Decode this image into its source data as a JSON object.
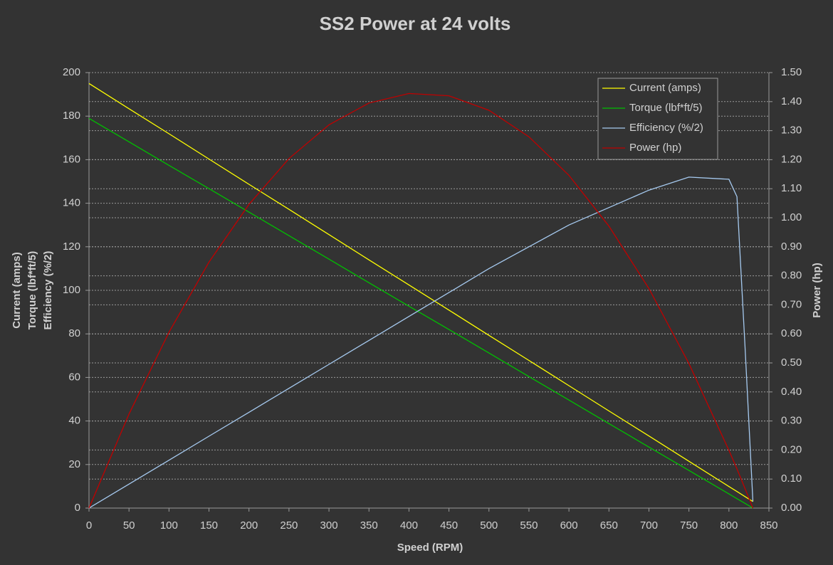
{
  "chart_data": {
    "type": "line",
    "title": "SS2 Power at 24 volts",
    "x_label": "Speed (RPM)",
    "y_label": [
      "Current (amps)",
      "Torque (lbf*ft/5)",
      "Efficiency (%/2)"
    ],
    "y2_label": "Power (hp)",
    "x": [
      0,
      50,
      100,
      150,
      200,
      250,
      300,
      350,
      400,
      450,
      500,
      550,
      600,
      650,
      700,
      750,
      800,
      810,
      820,
      830
    ],
    "series": [
      {
        "name": "Current (amps)",
        "color": "#ffff00",
        "values": [
          195,
          183.4,
          171.9,
          160.3,
          148.7,
          137.2,
          125.6,
          114.0,
          102.5,
          90.9,
          79.3,
          67.8,
          56.2,
          44.6,
          33.1,
          21.5,
          9.9,
          7.6,
          5.3,
          3
        ]
      },
      {
        "name": "Torque (lbf*ft/5)",
        "color": "#00c000",
        "values": [
          179,
          168.2,
          157.4,
          146.7,
          135.9,
          125.1,
          114.3,
          103.5,
          92.7,
          82.0,
          71.2,
          60.4,
          49.6,
          38.8,
          28.0,
          17.3,
          6.5,
          4.3,
          2.2,
          0
        ]
      },
      {
        "name": "Efficiency (%/2)",
        "color": "#a6caf0",
        "values": [
          0,
          11,
          22,
          33,
          44,
          55,
          66,
          77,
          88,
          99,
          110,
          120,
          130,
          138,
          146,
          152,
          151,
          143,
          75,
          3
        ]
      },
      {
        "name": "Power (hp)",
        "color": "#c00000",
        "axis": "y2",
        "values": [
          0,
          0.324,
          0.606,
          0.847,
          1.046,
          1.204,
          1.32,
          1.395,
          1.428,
          1.42,
          1.37,
          1.279,
          1.146,
          0.971,
          0.756,
          0.498,
          0.199,
          0.135,
          0.068,
          0
        ]
      }
    ],
    "xlim": [
      0,
      850
    ],
    "xticks": [
      0,
      50,
      100,
      150,
      200,
      250,
      300,
      350,
      400,
      450,
      500,
      550,
      600,
      650,
      700,
      750,
      800,
      850
    ],
    "ylim": [
      0,
      200
    ],
    "yticks": [
      0,
      20,
      40,
      60,
      80,
      100,
      120,
      140,
      160,
      180,
      200
    ],
    "y2lim": [
      0,
      1.5
    ],
    "y2ticks": [
      {
        "value": 0,
        "label": "0.00"
      },
      {
        "value": 0.1,
        "label": "0.10"
      },
      {
        "value": 0.2,
        "label": "0.20"
      },
      {
        "value": 0.3,
        "label": "0.30"
      },
      {
        "value": 0.4,
        "label": "0.40"
      },
      {
        "value": 0.5,
        "label": "0.50"
      },
      {
        "value": 0.6,
        "label": "0.60"
      },
      {
        "value": 0.7,
        "label": "0.70"
      },
      {
        "value": 0.8,
        "label": "0.80"
      },
      {
        "value": 0.9,
        "label": "0.90"
      },
      {
        "value": 1.0,
        "label": "1.00"
      },
      {
        "value": 1.1,
        "label": "1.10"
      },
      {
        "value": 1.2,
        "label": "1.20"
      },
      {
        "value": 1.3,
        "label": "1.30"
      },
      {
        "value": 1.4,
        "label": "1.40"
      },
      {
        "value": 1.5,
        "label": "1.50"
      }
    ],
    "grid": true,
    "legend": "top-right"
  }
}
